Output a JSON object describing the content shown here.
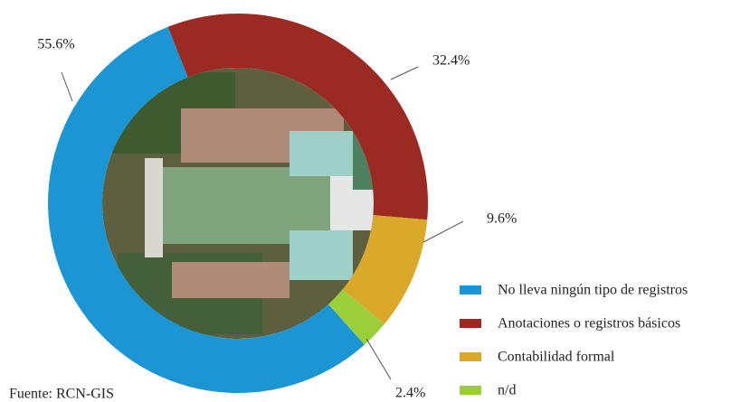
{
  "chart_data": {
    "type": "donut",
    "series": [
      {
        "name": "No lleva ningún tipo de registros",
        "color": "#1b95d3"
      },
      {
        "name": "Anotaciones o registros básicos",
        "color": "#9b2a22"
      },
      {
        "name": "Contabilidad formal",
        "color": "#dba92a"
      },
      {
        "name": "n/d",
        "color": "#9bcf3a"
      }
    ],
    "values": [
      55.6,
      32.4,
      9.6,
      2.4
    ],
    "value_labels": [
      "55.6%",
      "32.4%",
      "9.6%",
      "2.4%"
    ],
    "source": "Fuente: RCN-GIS"
  }
}
